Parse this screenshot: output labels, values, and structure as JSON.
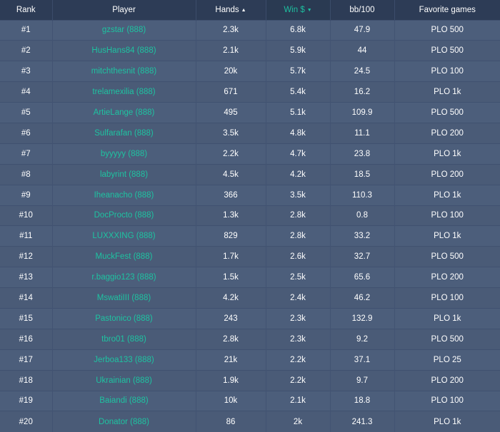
{
  "headers": {
    "rank": "Rank",
    "player": "Player",
    "hands": "Hands",
    "hands_sort_glyph": "▲",
    "win": "Win $",
    "win_sort_glyph": "▼",
    "bb100": "bb/100",
    "favorite": "Favorite games"
  },
  "colors": {
    "accent": "#1ec3a1",
    "header_bg": "#2d3c56",
    "row_bg": "#4a5c79"
  },
  "rows": [
    {
      "rank": "#1",
      "player": "gzstar (888)",
      "hands": "2.3k",
      "win": "6.8k",
      "bb100": "47.9",
      "favorite": "PLO 500"
    },
    {
      "rank": "#2",
      "player": "HusHans84 (888)",
      "hands": "2.1k",
      "win": "5.9k",
      "bb100": "44",
      "favorite": "PLO 500"
    },
    {
      "rank": "#3",
      "player": "mitchthesnit (888)",
      "hands": "20k",
      "win": "5.7k",
      "bb100": "24.5",
      "favorite": "PLO 100"
    },
    {
      "rank": "#4",
      "player": "trelamexilia (888)",
      "hands": "671",
      "win": "5.4k",
      "bb100": "16.2",
      "favorite": "PLO 1k"
    },
    {
      "rank": "#5",
      "player": "ArtieLange (888)",
      "hands": "495",
      "win": "5.1k",
      "bb100": "109.9",
      "favorite": "PLO 500"
    },
    {
      "rank": "#6",
      "player": "Sulfarafan (888)",
      "hands": "3.5k",
      "win": "4.8k",
      "bb100": "11.1",
      "favorite": "PLO 200"
    },
    {
      "rank": "#7",
      "player": "byyyyy (888)",
      "hands": "2.2k",
      "win": "4.7k",
      "bb100": "23.8",
      "favorite": "PLO 1k"
    },
    {
      "rank": "#8",
      "player": "labyrint (888)",
      "hands": "4.5k",
      "win": "4.2k",
      "bb100": "18.5",
      "favorite": "PLO 200"
    },
    {
      "rank": "#9",
      "player": "Iheanacho (888)",
      "hands": "366",
      "win": "3.5k",
      "bb100": "110.3",
      "favorite": "PLO 1k"
    },
    {
      "rank": "#10",
      "player": "DocProcto (888)",
      "hands": "1.3k",
      "win": "2.8k",
      "bb100": "0.8",
      "favorite": "PLO 100"
    },
    {
      "rank": "#11",
      "player": "LUXXXING (888)",
      "hands": "829",
      "win": "2.8k",
      "bb100": "33.2",
      "favorite": "PLO 1k"
    },
    {
      "rank": "#12",
      "player": "MuckFest (888)",
      "hands": "1.7k",
      "win": "2.6k",
      "bb100": "32.7",
      "favorite": "PLO 500"
    },
    {
      "rank": "#13",
      "player": "r.baggio123 (888)",
      "hands": "1.5k",
      "win": "2.5k",
      "bb100": "65.6",
      "favorite": "PLO 200"
    },
    {
      "rank": "#14",
      "player": "MswatiIII (888)",
      "hands": "4.2k",
      "win": "2.4k",
      "bb100": "46.2",
      "favorite": "PLO 100"
    },
    {
      "rank": "#15",
      "player": "Pastonico (888)",
      "hands": "243",
      "win": "2.3k",
      "bb100": "132.9",
      "favorite": "PLO 1k"
    },
    {
      "rank": "#16",
      "player": "tbro01 (888)",
      "hands": "2.8k",
      "win": "2.3k",
      "bb100": "9.2",
      "favorite": "PLO 500"
    },
    {
      "rank": "#17",
      "player": "Jerboa133 (888)",
      "hands": "21k",
      "win": "2.2k",
      "bb100": "37.1",
      "favorite": "PLO 25"
    },
    {
      "rank": "#18",
      "player": "Ukrainian (888)",
      "hands": "1.9k",
      "win": "2.2k",
      "bb100": "9.7",
      "favorite": "PLO 200"
    },
    {
      "rank": "#19",
      "player": "Baiandi (888)",
      "hands": "10k",
      "win": "2.1k",
      "bb100": "18.8",
      "favorite": "PLO 100"
    },
    {
      "rank": "#20",
      "player": "Donator (888)",
      "hands": "86",
      "win": "2k",
      "bb100": "241.3",
      "favorite": "PLO 1k"
    }
  ]
}
